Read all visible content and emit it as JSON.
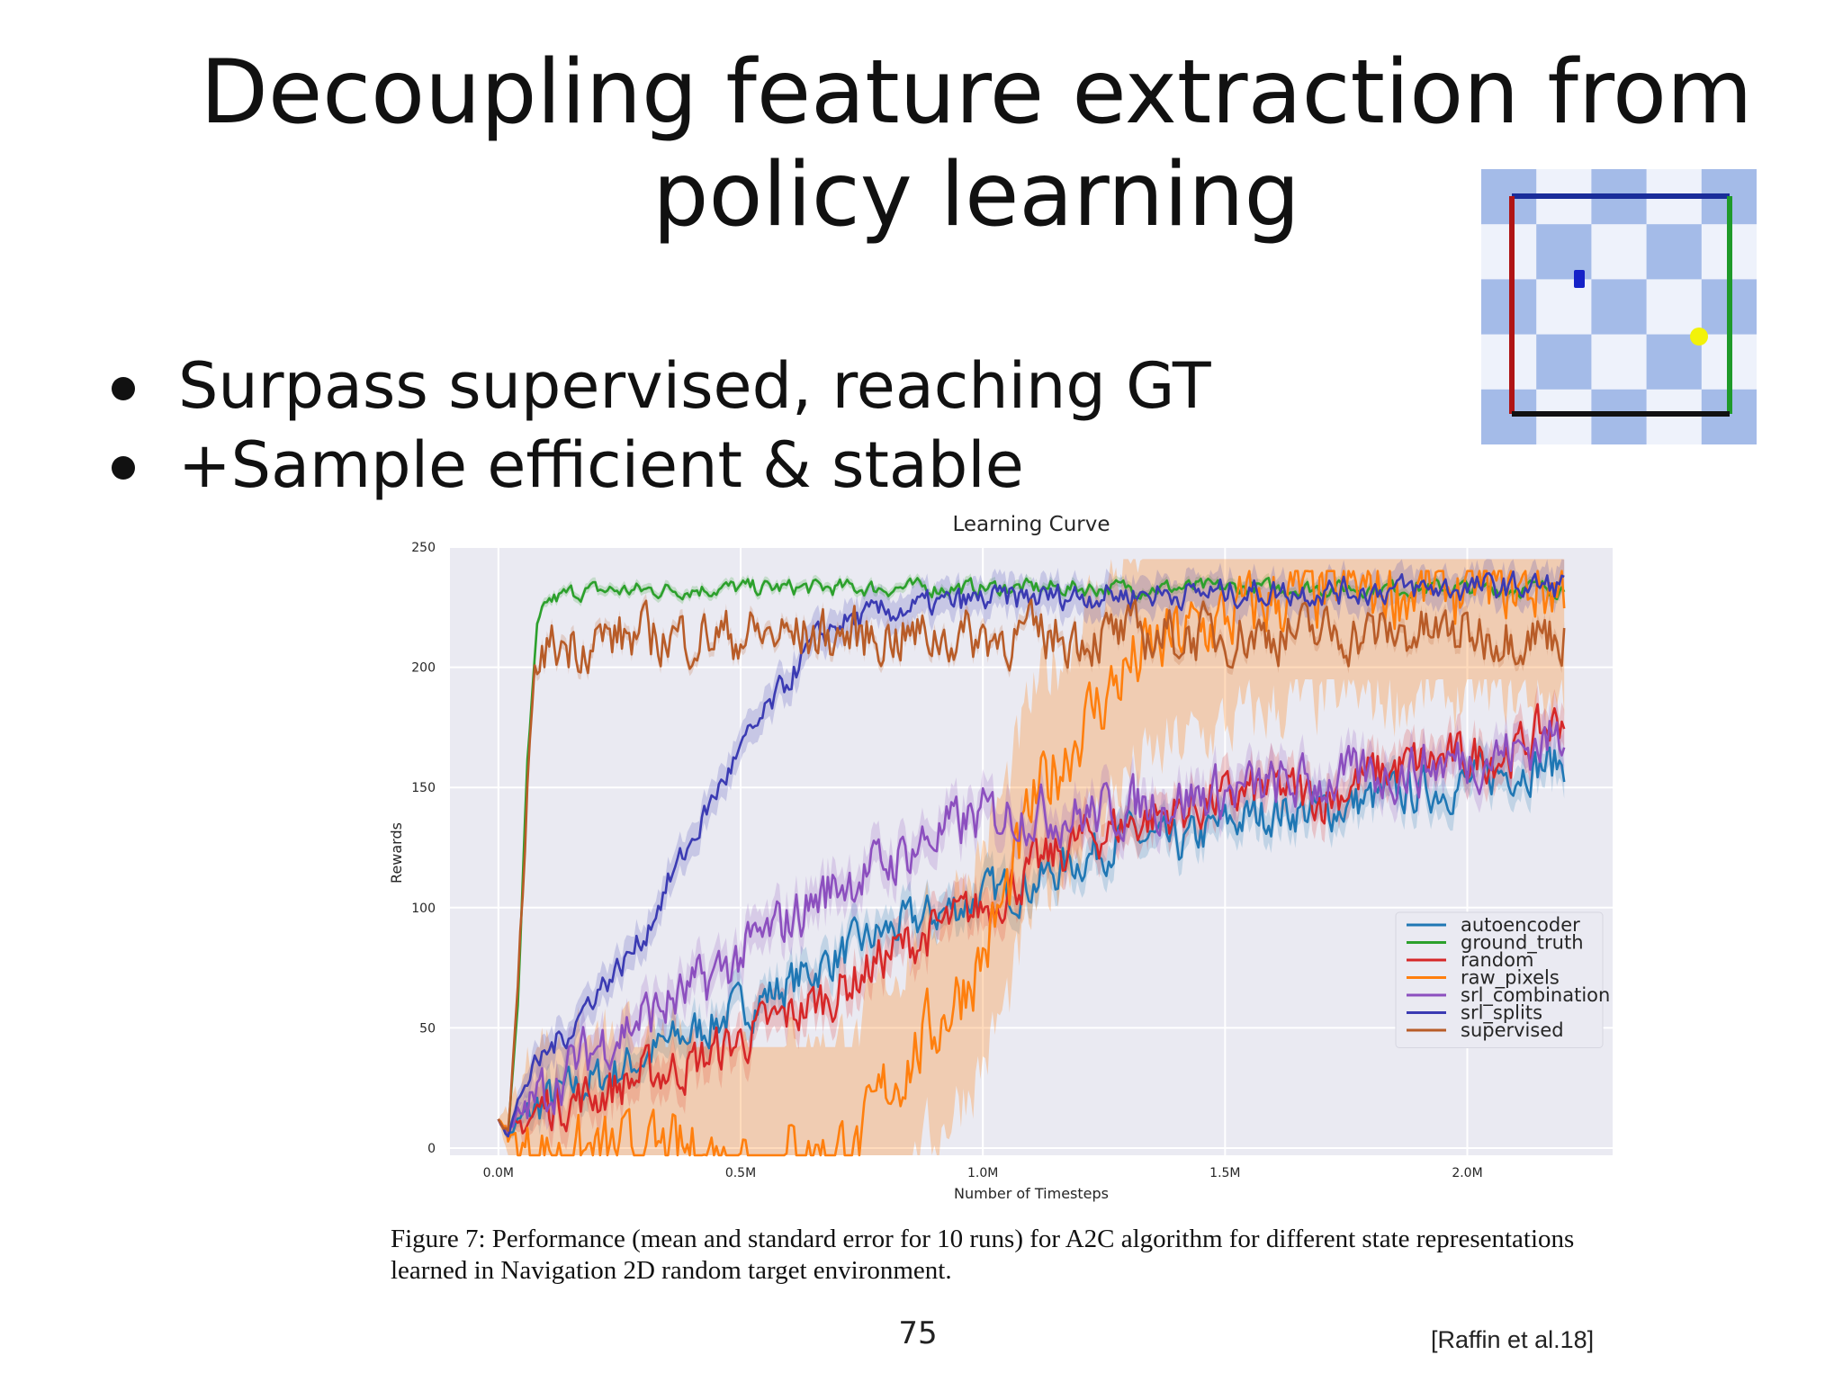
{
  "slide": {
    "title": "Decoupling feature extraction from policy learning",
    "bullets": [
      "Surpass supervised, reaching GT",
      "+Sample efficient & stable"
    ],
    "caption": "Figure 7: Performance (mean and standard error for 10 runs) for A2C algorithm for different state representations learned in Navigation 2D random target environment.",
    "page_number": "75",
    "citation": "[Raffin et al.18]"
  },
  "chart_data": {
    "type": "line",
    "title": "Learning Curve",
    "xlabel": "Number of Timesteps",
    "ylabel": "Rewards",
    "xlim": [
      -0.1,
      2.3
    ],
    "ylim": [
      -3,
      250
    ],
    "xticks": [
      0.0,
      0.5,
      1.0,
      1.5,
      2.0
    ],
    "xtick_labels": [
      "0.0M",
      "0.5M",
      "1.0M",
      "1.5M",
      "2.0M"
    ],
    "yticks": [
      0,
      50,
      100,
      150,
      200,
      250
    ],
    "ytick_labels": [
      "0",
      "50",
      "100",
      "150",
      "200",
      "250"
    ],
    "grid": true,
    "legend_position": "lower-right",
    "background": "#eaeaf2",
    "series": [
      {
        "name": "autoencoder",
        "color": "#1f77b4",
        "x": [
          0.0,
          0.02,
          0.05,
          0.1,
          0.2,
          0.3,
          0.4,
          0.5,
          0.6,
          0.7,
          0.8,
          0.9,
          1.0,
          1.1,
          1.2,
          1.3,
          1.4,
          1.5,
          1.6,
          1.7,
          1.8,
          1.9,
          2.0,
          2.1,
          2.2
        ],
        "y": [
          12,
          5,
          12,
          20,
          28,
          38,
          48,
          58,
          68,
          80,
          90,
          97,
          105,
          110,
          120,
          130,
          125,
          135,
          140,
          140,
          145,
          148,
          152,
          158,
          160
        ]
      },
      {
        "name": "ground_truth",
        "color": "#2ca02c",
        "x": [
          0.0,
          0.02,
          0.04,
          0.06,
          0.08,
          0.1,
          0.15,
          0.2,
          0.3,
          0.5,
          0.8,
          1.0,
          1.2,
          1.5,
          1.8,
          2.0,
          2.2
        ],
        "y": [
          12,
          5,
          60,
          160,
          215,
          227,
          231,
          232,
          232,
          233,
          233,
          233,
          233,
          233,
          233,
          233,
          233
        ]
      },
      {
        "name": "random",
        "color": "#d62728",
        "x": [
          0.0,
          0.02,
          0.05,
          0.1,
          0.2,
          0.3,
          0.4,
          0.5,
          0.6,
          0.7,
          0.8,
          0.9,
          1.0,
          1.1,
          1.2,
          1.3,
          1.4,
          1.5,
          1.6,
          1.7,
          1.8,
          1.9,
          2.0,
          2.1,
          2.2
        ],
        "y": [
          12,
          5,
          10,
          18,
          22,
          30,
          35,
          45,
          55,
          65,
          80,
          90,
          100,
          115,
          128,
          135,
          140,
          145,
          150,
          145,
          155,
          160,
          162,
          165,
          180
        ]
      },
      {
        "name": "raw_pixels",
        "color": "#ff7f0e",
        "x": [
          0.0,
          0.02,
          0.05,
          0.1,
          0.2,
          0.4,
          0.6,
          0.75,
          0.8,
          0.9,
          1.0,
          1.05,
          1.1,
          1.2,
          1.3,
          1.4,
          1.5,
          1.6,
          1.7,
          1.8,
          1.9,
          2.0,
          2.1,
          2.2
        ],
        "y": [
          12,
          5,
          0,
          -3,
          -3,
          -3,
          -3,
          0,
          25,
          50,
          80,
          105,
          140,
          175,
          200,
          212,
          220,
          228,
          230,
          232,
          232,
          233,
          233,
          233
        ]
      },
      {
        "name": "srl_combination",
        "color": "#8c4fbf",
        "x": [
          0.0,
          0.02,
          0.05,
          0.1,
          0.2,
          0.3,
          0.4,
          0.5,
          0.6,
          0.7,
          0.8,
          0.9,
          1.0,
          1.1,
          1.2,
          1.3,
          1.4,
          1.5,
          1.6,
          1.7,
          1.8,
          1.9,
          2.0,
          2.1,
          2.2
        ],
        "y": [
          12,
          5,
          15,
          25,
          42,
          55,
          65,
          80,
          95,
          110,
          118,
          130,
          138,
          140,
          138,
          142,
          145,
          148,
          150,
          152,
          155,
          158,
          162,
          165,
          172
        ]
      },
      {
        "name": "srl_splits",
        "color": "#3b3bb3",
        "x": [
          0.0,
          0.02,
          0.05,
          0.1,
          0.15,
          0.2,
          0.25,
          0.3,
          0.35,
          0.4,
          0.45,
          0.5,
          0.55,
          0.6,
          0.65,
          0.7,
          0.8,
          0.9,
          1.0,
          1.2,
          1.5,
          1.8,
          2.0,
          2.2
        ],
        "y": [
          12,
          5,
          25,
          40,
          50,
          65,
          75,
          88,
          110,
          128,
          148,
          165,
          180,
          195,
          210,
          218,
          223,
          226,
          228,
          230,
          231,
          232,
          233,
          234
        ]
      },
      {
        "name": "supervised",
        "color": "#b85c28",
        "x": [
          0.0,
          0.02,
          0.04,
          0.06,
          0.08,
          0.1,
          0.2,
          0.4,
          0.6,
          0.8,
          1.0,
          1.2,
          1.4,
          1.6,
          1.8,
          2.0,
          2.2
        ],
        "y": [
          12,
          5,
          60,
          155,
          200,
          208,
          212,
          213,
          213,
          213,
          213,
          213,
          213,
          214,
          214,
          214,
          214
        ]
      }
    ]
  },
  "thumbnail": {
    "tile_color_a": "#a4bbe8",
    "tile_color_b": "#eef2fb",
    "border_top": "#1a2d9a",
    "border_left": "#b01515",
    "border_right": "#1f9a2a",
    "border_bottom": "#111111",
    "agent_color": "#1522c8",
    "target_color": "#f2f20a"
  }
}
